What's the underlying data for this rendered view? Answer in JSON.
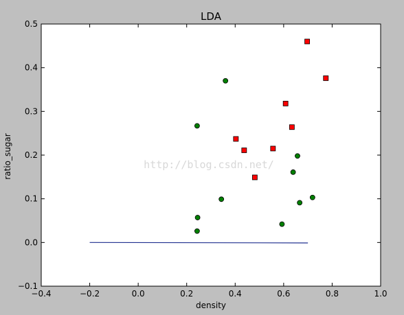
{
  "chart_data": {
    "type": "scatter",
    "title": "LDA",
    "xlabel": "density",
    "ylabel": "ratio_sugar",
    "xlim": [
      -0.4,
      1.0
    ],
    "ylim": [
      -0.1,
      0.5
    ],
    "x_ticks": [
      -0.4,
      -0.2,
      0.0,
      0.2,
      0.4,
      0.6,
      0.8,
      1.0
    ],
    "x_tick_labels": [
      "−0.4",
      "−0.2",
      "0.0",
      "0.2",
      "0.4",
      "0.6",
      "0.8",
      "1.0"
    ],
    "y_ticks": [
      -0.1,
      0.0,
      0.1,
      0.2,
      0.3,
      0.4,
      0.5
    ],
    "y_tick_labels": [
      "−0.1",
      "0.0",
      "0.1",
      "0.2",
      "0.3",
      "0.4",
      "0.5"
    ],
    "grid": false,
    "series": [
      {
        "marker": "square",
        "color": "#ff0000",
        "points": [
          [
            0.697,
            0.46
          ],
          [
            0.774,
            0.376
          ],
          [
            0.634,
            0.264
          ],
          [
            0.608,
            0.318
          ],
          [
            0.556,
            0.215
          ],
          [
            0.403,
            0.237
          ],
          [
            0.481,
            0.149
          ],
          [
            0.437,
            0.211
          ]
        ]
      },
      {
        "marker": "circle",
        "color": "#008000",
        "points": [
          [
            0.666,
            0.091
          ],
          [
            0.243,
            0.267
          ],
          [
            0.245,
            0.057
          ],
          [
            0.343,
            0.099
          ],
          [
            0.639,
            0.161
          ],
          [
            0.657,
            0.198
          ],
          [
            0.36,
            0.37
          ],
          [
            0.593,
            0.042
          ],
          [
            0.719,
            0.103
          ],
          [
            0.243,
            0.026
          ]
        ]
      }
    ],
    "lines": [
      {
        "color": "#1f2f8f",
        "points": [
          [
            -0.2,
            0.0
          ],
          [
            0.7,
            -0.001
          ]
        ]
      }
    ]
  },
  "watermark": "http://blog.csdn.net/"
}
